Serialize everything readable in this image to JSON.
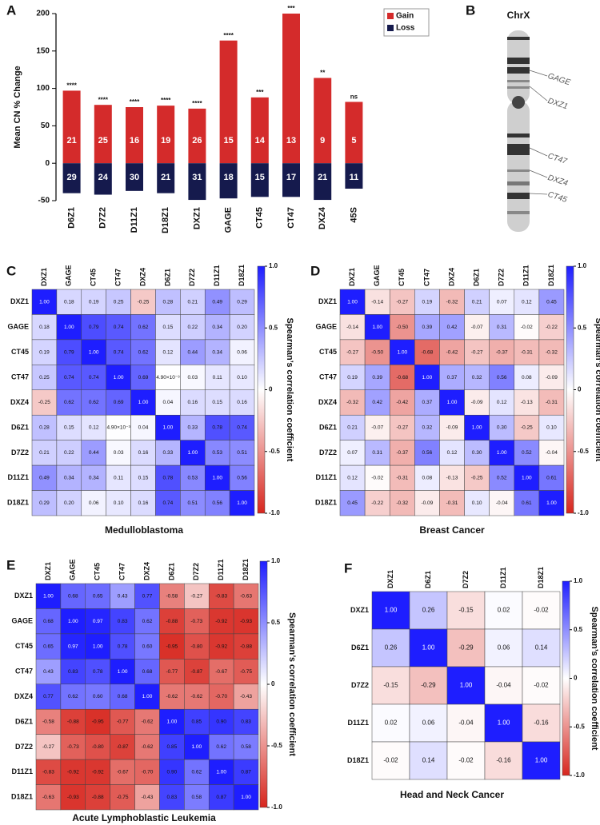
{
  "chart_data": [
    {
      "type": "bar",
      "panel": "A",
      "ylabel": "Mean CN % Change",
      "categories": [
        "D6Z1",
        "D7Z2",
        "D11Z1",
        "D18Z1",
        "DXZ1",
        "GAGE",
        "CT45",
        "CT47",
        "DXZ4",
        "45S"
      ],
      "series": [
        {
          "name": "Gain",
          "color": "#d42b2b",
          "values": [
            97,
            78,
            75,
            77,
            73,
            164,
            88,
            200,
            114,
            82
          ],
          "counts": [
            "21",
            "25",
            "16",
            "19",
            "26",
            "15",
            "14",
            "13",
            "9",
            "5"
          ]
        },
        {
          "name": "Loss",
          "color": "#151a4d",
          "values": [
            -40,
            -42,
            -37,
            -40,
            -49,
            -47,
            -45,
            -45,
            -49,
            -34
          ],
          "counts": [
            "29",
            "24",
            "30",
            "21",
            "31",
            "18",
            "15",
            "17",
            "21",
            "11"
          ]
        }
      ],
      "significance": [
        "****",
        "****",
        "****",
        "****",
        "****",
        "****",
        "***",
        "***",
        "**",
        "ns"
      ],
      "ylim": [
        -50,
        200
      ],
      "yticks": [
        -50,
        0,
        50,
        100,
        150,
        200
      ],
      "legend": "upper right"
    },
    {
      "type": "heatmap",
      "panel": "C",
      "title": "Medulloblastoma",
      "colorbar_label": "Spearman’s correlation coefficient",
      "labels": [
        "DXZ1",
        "GAGE",
        "CT45",
        "CT47",
        "DXZ4",
        "D6Z1",
        "D7Z2",
        "D11Z1",
        "D18Z1"
      ],
      "values": [
        [
          1.0,
          0.18,
          0.19,
          0.25,
          -0.25,
          0.28,
          0.21,
          0.49,
          0.29
        ],
        [
          0.18,
          1.0,
          0.79,
          0.74,
          0.62,
          0.15,
          0.22,
          0.34,
          0.2
        ],
        [
          0.19,
          0.79,
          1.0,
          0.74,
          0.62,
          0.12,
          0.44,
          0.34,
          0.06
        ],
        [
          0.25,
          0.74,
          0.74,
          1.0,
          0.69,
          0.0049,
          0.03,
          0.11,
          0.1
        ],
        [
          -0.25,
          0.62,
          0.62,
          0.69,
          1.0,
          0.04,
          0.16,
          0.15,
          0.16
        ],
        [
          0.28,
          0.15,
          0.12,
          0.0049,
          0.04,
          1.0,
          0.33,
          0.78,
          0.74
        ],
        [
          0.21,
          0.22,
          0.44,
          0.03,
          0.16,
          0.33,
          1.0,
          0.53,
          0.51
        ],
        [
          0.49,
          0.34,
          0.34,
          0.11,
          0.15,
          0.78,
          0.53,
          1.0,
          0.56
        ],
        [
          0.29,
          0.2,
          0.06,
          0.1,
          0.16,
          0.74,
          0.51,
          0.56,
          1.0
        ]
      ],
      "value_labels": [
        [
          "1.00",
          "0.18",
          "0.19",
          "0.25",
          "-0.25",
          "0.28",
          "0.21",
          "0.49",
          "0.29"
        ],
        [
          "0.18",
          "1.00",
          "0.79",
          "0.74",
          "0.62",
          "0.15",
          "0.22",
          "0.34",
          "0.20"
        ],
        [
          "0.19",
          "0.79",
          "1.00",
          "0.74",
          "0.62",
          "0.12",
          "0.44",
          "0.34",
          "0.06"
        ],
        [
          "0.25",
          "0.74",
          "0.74",
          "1.00",
          "0.69",
          "4.90×10⁻³",
          "0.03",
          "0.11",
          "0.10"
        ],
        [
          "-0.25",
          "0.62",
          "0.62",
          "0.69",
          "1.00",
          "0.04",
          "0.16",
          "0.15",
          "0.16"
        ],
        [
          "0.28",
          "0.15",
          "0.12",
          "4.90×10⁻³",
          "0.04",
          "1.00",
          "0.33",
          "0.78",
          "0.74"
        ],
        [
          "0.21",
          "0.22",
          "0.44",
          "0.03",
          "0.16",
          "0.33",
          "1.00",
          "0.53",
          "0.51"
        ],
        [
          "0.49",
          "0.34",
          "0.34",
          "0.11",
          "0.15",
          "0.78",
          "0.53",
          "1.00",
          "0.56"
        ],
        [
          "0.29",
          "0.20",
          "0.06",
          "0.10",
          "0.16",
          "0.74",
          "0.51",
          "0.56",
          "1.00"
        ]
      ],
      "clim": [
        -1,
        1
      ],
      "cticks": [
        {
          "value": -1,
          "label": "-1.0"
        },
        -0.5,
        0,
        0.5,
        {
          "value": 1,
          "label": "1.0"
        }
      ],
      "colormap": [
        "#d7261e",
        "#ffffff",
        "#1e1eff"
      ]
    },
    {
      "type": "heatmap",
      "panel": "D",
      "title": "Breast Cancer",
      "colorbar_label": "Spearman’s correlation coefficient",
      "labels": [
        "DXZ1",
        "GAGE",
        "CT45",
        "CT47",
        "DXZ4",
        "D6Z1",
        "D7Z2",
        "D11Z1",
        "D18Z1"
      ],
      "values": [
        [
          1.0,
          -0.14,
          -0.27,
          0.19,
          -0.32,
          0.21,
          0.07,
          0.12,
          0.45
        ],
        [
          -0.14,
          1.0,
          -0.5,
          0.39,
          0.42,
          -0.07,
          0.31,
          -0.02,
          -0.22
        ],
        [
          -0.27,
          -0.5,
          1.0,
          -0.68,
          -0.42,
          -0.27,
          -0.37,
          -0.31,
          -0.32
        ],
        [
          0.19,
          0.39,
          -0.68,
          1.0,
          0.37,
          0.32,
          0.56,
          0.08,
          -0.09
        ],
        [
          -0.32,
          0.42,
          -0.42,
          0.37,
          1.0,
          -0.09,
          0.12,
          -0.13,
          -0.31
        ],
        [
          0.21,
          -0.07,
          -0.27,
          0.32,
          -0.09,
          1.0,
          0.3,
          -0.25,
          0.1
        ],
        [
          0.07,
          0.31,
          -0.37,
          0.56,
          0.12,
          0.3,
          1.0,
          0.52,
          -0.04
        ],
        [
          0.12,
          -0.02,
          -0.31,
          0.08,
          -0.13,
          -0.25,
          0.52,
          1.0,
          0.61
        ],
        [
          0.45,
          -0.22,
          -0.32,
          -0.09,
          -0.31,
          0.1,
          -0.04,
          0.61,
          1.0
        ]
      ],
      "value_labels": [
        [
          "1.00",
          "-0.14",
          "-0.27",
          "0.19",
          "-0.32",
          "0.21",
          "0.07",
          "0.12",
          "0.45"
        ],
        [
          "-0.14",
          "1.00",
          "-0.50",
          "0.39",
          "0.42",
          "-0.07",
          "0.31",
          "-0.02",
          "-0.22"
        ],
        [
          "-0.27",
          "-0.50",
          "1.00",
          "-0.68",
          "-0.42",
          "-0.27",
          "-0.37",
          "-0.31",
          "-0.32"
        ],
        [
          "0.19",
          "0.39",
          "-0.68",
          "1.00",
          "0.37",
          "0.32",
          "0.56",
          "0.08",
          "-0.09"
        ],
        [
          "-0.32",
          "0.42",
          "-0.42",
          "0.37",
          "1.00",
          "-0.09",
          "0.12",
          "-0.13",
          "-0.31"
        ],
        [
          "0.21",
          "-0.07",
          "-0.27",
          "0.32",
          "-0.09",
          "1.00",
          "0.30",
          "-0.25",
          "0.10"
        ],
        [
          "0.07",
          "0.31",
          "-0.37",
          "0.56",
          "0.12",
          "0.30",
          "1.00",
          "0.52",
          "-0.04"
        ],
        [
          "0.12",
          "-0.02",
          "-0.31",
          "0.08",
          "-0.13",
          "-0.25",
          "0.52",
          "1.00",
          "0.61"
        ],
        [
          "0.45",
          "-0.22",
          "-0.32",
          "-0.09",
          "-0.31",
          "0.10",
          "-0.04",
          "0.61",
          "1.00"
        ]
      ],
      "clim": [
        -1,
        1
      ],
      "cticks": [
        {
          "value": -1,
          "label": "-1.0"
        },
        -0.5,
        0,
        0.5,
        {
          "value": 1,
          "label": "1.0"
        }
      ],
      "colormap": [
        "#d7261e",
        "#ffffff",
        "#1e1eff"
      ]
    },
    {
      "type": "heatmap",
      "panel": "E",
      "title": "Acute Lymphoblastic Leukemia",
      "colorbar_label": "Spearman’s correlation coefficient",
      "labels": [
        "DXZ1",
        "GAGE",
        "CT45",
        "CT47",
        "DXZ4",
        "D6Z1",
        "D7Z2",
        "D11Z1",
        "D18Z1"
      ],
      "values": [
        [
          1.0,
          0.68,
          0.65,
          0.43,
          0.77,
          -0.58,
          -0.27,
          -0.83,
          -0.63
        ],
        [
          0.68,
          1.0,
          0.97,
          0.83,
          0.62,
          -0.88,
          -0.73,
          -0.92,
          -0.93
        ],
        [
          0.65,
          0.97,
          1.0,
          0.78,
          0.6,
          -0.95,
          -0.8,
          -0.92,
          -0.88
        ],
        [
          0.43,
          0.83,
          0.78,
          1.0,
          0.68,
          -0.77,
          -0.87,
          -0.67,
          -0.75
        ],
        [
          0.77,
          0.62,
          0.6,
          0.68,
          1.0,
          -0.62,
          -0.62,
          -0.7,
          -0.43
        ],
        [
          -0.58,
          -0.88,
          -0.95,
          -0.77,
          -0.62,
          1.0,
          0.85,
          0.9,
          0.83
        ],
        [
          -0.27,
          -0.73,
          -0.8,
          -0.87,
          -0.62,
          0.85,
          1.0,
          0.62,
          0.58
        ],
        [
          -0.83,
          -0.92,
          -0.92,
          -0.67,
          -0.7,
          0.9,
          0.62,
          1.0,
          0.87
        ],
        [
          -0.63,
          -0.93,
          -0.88,
          -0.75,
          -0.43,
          0.83,
          0.58,
          0.87,
          1.0
        ]
      ],
      "value_labels": [
        [
          "1.00",
          "0.68",
          "0.65",
          "0.43",
          "0.77",
          "-0.58",
          "-0.27",
          "-0.83",
          "-0.63"
        ],
        [
          "0.68",
          "1.00",
          "0.97",
          "0.83",
          "0.62",
          "-0.88",
          "-0.73",
          "-0.92",
          "-0.93"
        ],
        [
          "0.65",
          "0.97",
          "1.00",
          "0.78",
          "0.60",
          "-0.95",
          "-0.80",
          "-0.92",
          "-0.88"
        ],
        [
          "0.43",
          "0.83",
          "0.78",
          "1.00",
          "0.68",
          "-0.77",
          "-0.87",
          "-0.67",
          "-0.75"
        ],
        [
          "0.77",
          "0.62",
          "0.60",
          "0.68",
          "1.00",
          "-0.62",
          "-0.62",
          "-0.70",
          "-0.43"
        ],
        [
          "-0.58",
          "-0.88",
          "-0.95",
          "-0.77",
          "-0.62",
          "1.00",
          "0.85",
          "0.90",
          "0.83"
        ],
        [
          "-0.27",
          "-0.73",
          "-0.80",
          "-0.87",
          "-0.62",
          "0.85",
          "1.00",
          "0.62",
          "0.58"
        ],
        [
          "-0.83",
          "-0.92",
          "-0.92",
          "-0.67",
          "-0.70",
          "0.90",
          "0.62",
          "1.00",
          "0.87"
        ],
        [
          "-0.63",
          "-0.93",
          "-0.88",
          "-0.75",
          "-0.43",
          "0.83",
          "0.58",
          "0.87",
          "1.00"
        ]
      ],
      "clim": [
        -1,
        1
      ],
      "cticks": [
        {
          "value": -1,
          "label": "-1.0"
        },
        -0.5,
        0,
        0.5,
        {
          "value": 1,
          "label": "1.0"
        }
      ],
      "colormap": [
        "#d7261e",
        "#ffffff",
        "#1e1eff"
      ]
    },
    {
      "type": "heatmap",
      "panel": "F",
      "title": "Head and Neck Cancer",
      "colorbar_label": "Spearman’s correlation coefficient",
      "labels": [
        "DXZ1",
        "D6Z1",
        "D7Z2",
        "D11Z1",
        "D18Z1"
      ],
      "values": [
        [
          1.0,
          0.26,
          -0.15,
          0.02,
          -0.02
        ],
        [
          0.26,
          1.0,
          -0.29,
          0.06,
          0.14
        ],
        [
          -0.15,
          -0.29,
          1.0,
          -0.04,
          -0.02
        ],
        [
          0.02,
          0.06,
          -0.04,
          1.0,
          -0.16
        ],
        [
          -0.02,
          0.14,
          -0.02,
          -0.16,
          1.0
        ]
      ],
      "value_labels": [
        [
          "1.00",
          "0.26",
          "-0.15",
          "0.02",
          "-0.02"
        ],
        [
          "0.26",
          "1.00",
          "-0.29",
          "0.06",
          "0.14"
        ],
        [
          "-0.15",
          "-0.29",
          "1.00",
          "-0.04",
          "-0.02"
        ],
        [
          "0.02",
          "0.06",
          "-0.04",
          "1.00",
          "-0.16"
        ],
        [
          "-0.02",
          "0.14",
          "-0.02",
          "-0.16",
          "1.00"
        ]
      ],
      "clim": [
        -1,
        1
      ],
      "cticks": [
        {
          "value": -1,
          "label": "-1.0"
        },
        -0.5,
        0,
        0.5,
        {
          "value": 1,
          "label": "1.0"
        }
      ],
      "colormap": [
        "#d7261e",
        "#ffffff",
        "#1e1eff"
      ]
    }
  ],
  "ideogram": {
    "panel": "B",
    "title": "ChrX",
    "labels": [
      "GAGE",
      "DXZ1",
      "CT47",
      "DXZ4",
      "CT45"
    ]
  }
}
